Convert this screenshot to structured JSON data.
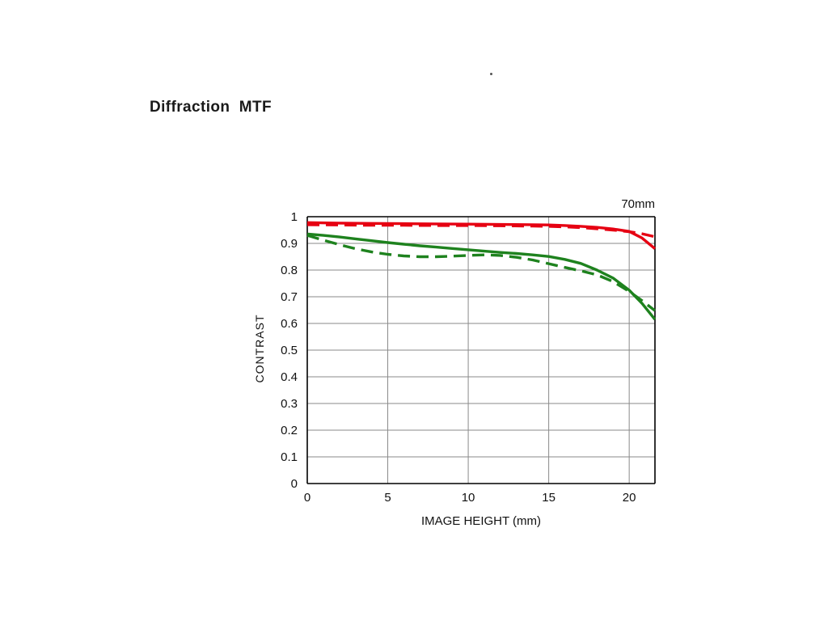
{
  "page": {
    "stray_mark": "."
  },
  "chart_data": {
    "type": "line",
    "title": "Diffraction  MTF",
    "annotation": "70mm",
    "xlabel": "IMAGE HEIGHT (mm)",
    "ylabel": "CONTRAST",
    "xlim": [
      0,
      21.6
    ],
    "ylim": [
      0,
      1
    ],
    "grid": true,
    "legend_position": "none",
    "xticks": [
      0,
      5,
      10,
      15,
      20
    ],
    "xtick_labels": [
      "0",
      "5",
      "10",
      "15",
      "20"
    ],
    "yticks": [
      0,
      0.1,
      0.2,
      0.3,
      0.4,
      0.5,
      0.6,
      0.7,
      0.8,
      0.9,
      1
    ],
    "ytick_labels": [
      "0",
      "0.1",
      "0.2",
      "0.3",
      "0.4",
      "0.5",
      "0.6",
      "0.7",
      "0.8",
      "0.9",
      "1"
    ],
    "colors": {
      "red": "#e60012",
      "green": "#1e821e"
    },
    "series": [
      {
        "name": "red-solid",
        "color": "#e60012",
        "style": "solid",
        "x": [
          0,
          2,
          4,
          6,
          8,
          10,
          12,
          14,
          15,
          16,
          17,
          18,
          19,
          20,
          20.8,
          21.6
        ],
        "y": [
          0.978,
          0.976,
          0.975,
          0.974,
          0.973,
          0.972,
          0.971,
          0.97,
          0.969,
          0.967,
          0.964,
          0.96,
          0.954,
          0.945,
          0.92,
          0.88
        ]
      },
      {
        "name": "red-dashed",
        "color": "#e60012",
        "style": "dashed",
        "x": [
          0,
          2,
          4,
          6,
          8,
          10,
          12,
          14,
          15,
          16,
          17,
          18,
          19,
          20,
          20.8,
          21.6
        ],
        "y": [
          0.97,
          0.969,
          0.968,
          0.968,
          0.967,
          0.967,
          0.966,
          0.965,
          0.964,
          0.962,
          0.959,
          0.955,
          0.95,
          0.944,
          0.936,
          0.925
        ]
      },
      {
        "name": "green-solid",
        "color": "#1e821e",
        "style": "solid",
        "x": [
          0,
          1,
          2,
          3,
          4,
          5,
          6,
          7,
          8,
          9,
          10,
          11,
          12,
          13,
          14,
          15,
          16,
          17,
          18,
          19,
          20,
          20.8,
          21.6
        ],
        "y": [
          0.935,
          0.93,
          0.924,
          0.917,
          0.91,
          0.903,
          0.897,
          0.891,
          0.886,
          0.881,
          0.876,
          0.871,
          0.866,
          0.862,
          0.857,
          0.851,
          0.84,
          0.825,
          0.8,
          0.77,
          0.725,
          0.675,
          0.615
        ]
      },
      {
        "name": "green-dashed",
        "color": "#1e821e",
        "style": "dashed",
        "x": [
          0,
          1,
          2,
          3,
          4,
          5,
          6,
          7,
          8,
          9,
          10,
          11,
          12,
          13,
          14,
          15,
          16,
          17,
          18,
          19,
          20,
          20.8,
          21.6
        ],
        "y": [
          0.93,
          0.912,
          0.895,
          0.88,
          0.868,
          0.859,
          0.853,
          0.85,
          0.85,
          0.852,
          0.855,
          0.857,
          0.855,
          0.848,
          0.838,
          0.824,
          0.81,
          0.797,
          0.782,
          0.757,
          0.72,
          0.685,
          0.648
        ]
      }
    ]
  }
}
